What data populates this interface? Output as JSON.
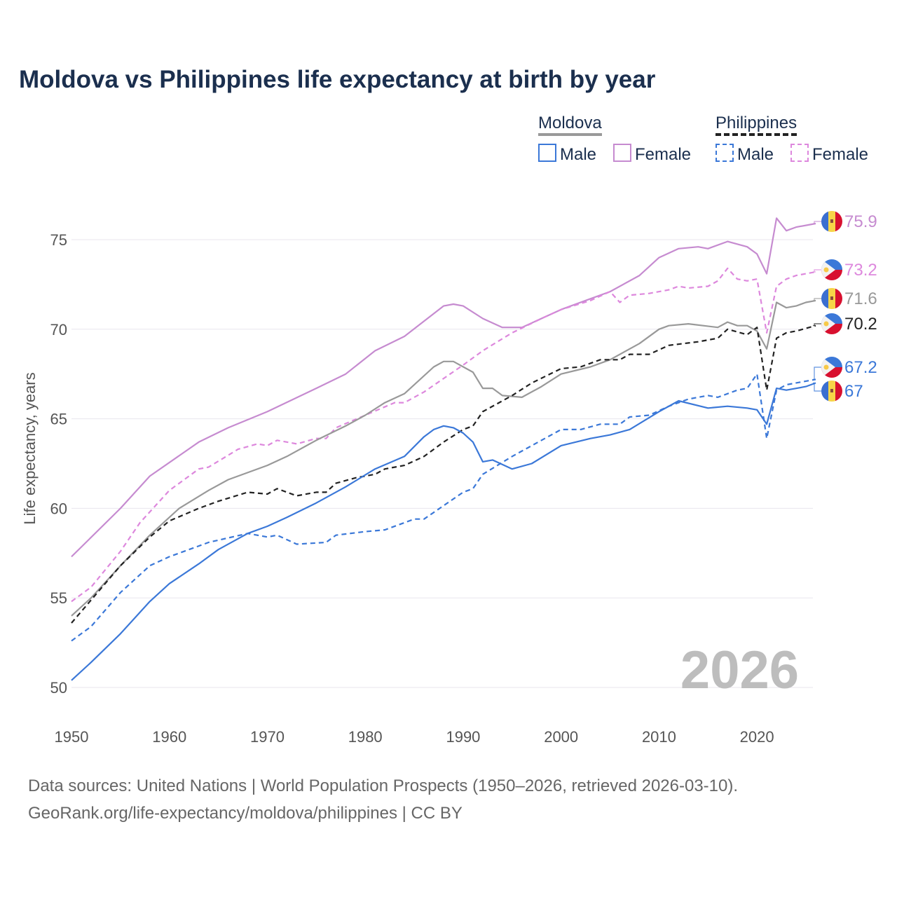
{
  "title": "Moldova vs Philippines life expectancy at birth by year",
  "legend": {
    "moldova": {
      "label": "Moldova",
      "male": "Male",
      "female": "Female"
    },
    "philippines": {
      "label": "Philippines",
      "male": "Male",
      "female": "Female"
    }
  },
  "watermark_year": "2026",
  "source_line1": "Data sources: United Nations | World Population Prospects (1950–2026, retrieved 2026-03-10).",
  "source_line2": "GeoRank.org/life-expectancy/moldova/philippines | CC BY",
  "chart_data": {
    "type": "line",
    "title": "Moldova vs Philippines life expectancy at birth by year",
    "xlabel": "",
    "ylabel": "Life expectancy, years",
    "xlim": [
      1950,
      2026
    ],
    "ylim": [
      50,
      76.5
    ],
    "xticks": [
      1950,
      1960,
      1970,
      1980,
      1990,
      2000,
      2010,
      2020
    ],
    "yticks": [
      50,
      55,
      60,
      65,
      70,
      75
    ],
    "grid": true,
    "legend_position": "top-right",
    "series": [
      {
        "name": "Moldova Female",
        "country": "moldova",
        "color": "#c68bd0",
        "dash": false,
        "end_label": "75.9",
        "points": [
          [
            1950,
            57.3
          ],
          [
            1955,
            60.0
          ],
          [
            1958,
            61.8
          ],
          [
            1963,
            63.7
          ],
          [
            1966,
            64.5
          ],
          [
            1970,
            65.4
          ],
          [
            1975,
            66.7
          ],
          [
            1978,
            67.5
          ],
          [
            1981,
            68.8
          ],
          [
            1984,
            69.6
          ],
          [
            1988,
            71.3
          ],
          [
            1989,
            71.4
          ],
          [
            1990,
            71.3
          ],
          [
            1992,
            70.6
          ],
          [
            1994,
            70.1
          ],
          [
            1996,
            70.1
          ],
          [
            2000,
            71.1
          ],
          [
            2003,
            71.7
          ],
          [
            2005,
            72.1
          ],
          [
            2008,
            73.0
          ],
          [
            2010,
            74.0
          ],
          [
            2012,
            74.5
          ],
          [
            2014,
            74.6
          ],
          [
            2015,
            74.5
          ],
          [
            2017,
            74.9
          ],
          [
            2019,
            74.6
          ],
          [
            2020,
            74.2
          ],
          [
            2021,
            73.1
          ],
          [
            2022,
            76.2
          ],
          [
            2023,
            75.5
          ],
          [
            2024,
            75.7
          ],
          [
            2026,
            75.9
          ]
        ]
      },
      {
        "name": "Philippines Female",
        "country": "philippines",
        "color": "#dd88dd",
        "dash": true,
        "end_label": "73.2",
        "points": [
          [
            1950,
            54.8
          ],
          [
            1952,
            55.6
          ],
          [
            1955,
            57.6
          ],
          [
            1957,
            59.2
          ],
          [
            1960,
            61.0
          ],
          [
            1963,
            62.2
          ],
          [
            1964,
            62.3
          ],
          [
            1967,
            63.3
          ],
          [
            1969,
            63.6
          ],
          [
            1970,
            63.5
          ],
          [
            1971,
            63.8
          ],
          [
            1973,
            63.6
          ],
          [
            1975,
            63.9
          ],
          [
            1976,
            63.9
          ],
          [
            1977,
            64.5
          ],
          [
            1980,
            65.2
          ],
          [
            1983,
            65.9
          ],
          [
            1984,
            65.9
          ],
          [
            1986,
            66.5
          ],
          [
            1990,
            68.0
          ],
          [
            1992,
            68.8
          ],
          [
            1995,
            69.8
          ],
          [
            1998,
            70.6
          ],
          [
            2000,
            71.1
          ],
          [
            2003,
            71.6
          ],
          [
            2005,
            72.1
          ],
          [
            2006,
            71.5
          ],
          [
            2007,
            71.9
          ],
          [
            2009,
            72.0
          ],
          [
            2011,
            72.2
          ],
          [
            2012,
            72.4
          ],
          [
            2013,
            72.3
          ],
          [
            2015,
            72.4
          ],
          [
            2016,
            72.7
          ],
          [
            2017,
            73.4
          ],
          [
            2018,
            72.8
          ],
          [
            2019,
            72.7
          ],
          [
            2020,
            72.8
          ],
          [
            2021,
            69.8
          ],
          [
            2022,
            72.4
          ],
          [
            2023,
            72.8
          ],
          [
            2024,
            73.0
          ],
          [
            2026,
            73.2
          ]
        ]
      },
      {
        "name": "Moldova",
        "country": "moldova",
        "color": "#999999",
        "dash": false,
        "end_label": "71.6",
        "points": [
          [
            1950,
            54.0
          ],
          [
            1952,
            55.0
          ],
          [
            1955,
            56.8
          ],
          [
            1958,
            58.5
          ],
          [
            1961,
            60.0
          ],
          [
            1964,
            61.0
          ],
          [
            1966,
            61.6
          ],
          [
            1970,
            62.4
          ],
          [
            1972,
            62.9
          ],
          [
            1975,
            63.8
          ],
          [
            1978,
            64.6
          ],
          [
            1980,
            65.2
          ],
          [
            1982,
            65.9
          ],
          [
            1984,
            66.4
          ],
          [
            1987,
            67.9
          ],
          [
            1988,
            68.2
          ],
          [
            1989,
            68.2
          ],
          [
            1991,
            67.6
          ],
          [
            1992,
            66.7
          ],
          [
            1993,
            66.7
          ],
          [
            1994,
            66.3
          ],
          [
            1996,
            66.2
          ],
          [
            1998,
            66.8
          ],
          [
            2000,
            67.5
          ],
          [
            2003,
            67.9
          ],
          [
            2005,
            68.3
          ],
          [
            2008,
            69.2
          ],
          [
            2010,
            70.0
          ],
          [
            2011,
            70.2
          ],
          [
            2013,
            70.3
          ],
          [
            2016,
            70.1
          ],
          [
            2017,
            70.4
          ],
          [
            2018,
            70.2
          ],
          [
            2019,
            70.2
          ],
          [
            2020,
            69.9
          ],
          [
            2021,
            68.9
          ],
          [
            2022,
            71.5
          ],
          [
            2023,
            71.2
          ],
          [
            2024,
            71.3
          ],
          [
            2025,
            71.5
          ],
          [
            2026,
            71.6
          ]
        ]
      },
      {
        "name": "Philippines",
        "country": "philippines",
        "color": "#222222",
        "dash": true,
        "end_label": "70.2",
        "points": [
          [
            1950,
            53.6
          ],
          [
            1955,
            56.8
          ],
          [
            1958,
            58.4
          ],
          [
            1960,
            59.3
          ],
          [
            1963,
            60.0
          ],
          [
            1965,
            60.4
          ],
          [
            1968,
            60.9
          ],
          [
            1970,
            60.8
          ],
          [
            1971,
            61.1
          ],
          [
            1973,
            60.7
          ],
          [
            1975,
            60.9
          ],
          [
            1976,
            60.9
          ],
          [
            1977,
            61.4
          ],
          [
            1979,
            61.7
          ],
          [
            1981,
            61.9
          ],
          [
            1982,
            62.2
          ],
          [
            1984,
            62.4
          ],
          [
            1986,
            62.9
          ],
          [
            1988,
            63.7
          ],
          [
            1990,
            64.4
          ],
          [
            1991,
            64.6
          ],
          [
            1992,
            65.4
          ],
          [
            1995,
            66.3
          ],
          [
            1997,
            67.0
          ],
          [
            2000,
            67.8
          ],
          [
            2002,
            67.9
          ],
          [
            2004,
            68.3
          ],
          [
            2006,
            68.3
          ],
          [
            2007,
            68.6
          ],
          [
            2009,
            68.6
          ],
          [
            2011,
            69.1
          ],
          [
            2014,
            69.3
          ],
          [
            2016,
            69.5
          ],
          [
            2017,
            70.0
          ],
          [
            2019,
            69.7
          ],
          [
            2020,
            70.1
          ],
          [
            2021,
            66.6
          ],
          [
            2022,
            69.5
          ],
          [
            2023,
            69.8
          ],
          [
            2024,
            69.9
          ],
          [
            2026,
            70.2
          ]
        ]
      },
      {
        "name": "Philippines Male",
        "country": "philippines",
        "color": "#3b78d8",
        "dash": true,
        "end_label": "67.2",
        "points": [
          [
            1950,
            52.6
          ],
          [
            1952,
            53.4
          ],
          [
            1955,
            55.3
          ],
          [
            1958,
            56.8
          ],
          [
            1960,
            57.3
          ],
          [
            1963,
            57.9
          ],
          [
            1964,
            58.1
          ],
          [
            1968,
            58.6
          ],
          [
            1970,
            58.4
          ],
          [
            1971,
            58.5
          ],
          [
            1973,
            58.0
          ],
          [
            1976,
            58.1
          ],
          [
            1977,
            58.5
          ],
          [
            1980,
            58.7
          ],
          [
            1982,
            58.8
          ],
          [
            1985,
            59.4
          ],
          [
            1986,
            59.4
          ],
          [
            1990,
            60.9
          ],
          [
            1991,
            61.1
          ],
          [
            1992,
            61.9
          ],
          [
            1995,
            62.9
          ],
          [
            2000,
            64.4
          ],
          [
            2002,
            64.4
          ],
          [
            2004,
            64.7
          ],
          [
            2006,
            64.7
          ],
          [
            2007,
            65.1
          ],
          [
            2009,
            65.2
          ],
          [
            2011,
            65.7
          ],
          [
            2013,
            66.1
          ],
          [
            2015,
            66.3
          ],
          [
            2016,
            66.2
          ],
          [
            2018,
            66.6
          ],
          [
            2019,
            66.7
          ],
          [
            2020,
            67.5
          ],
          [
            2021,
            63.9
          ],
          [
            2022,
            66.6
          ],
          [
            2023,
            66.9
          ],
          [
            2026,
            67.2
          ]
        ]
      },
      {
        "name": "Moldova Male",
        "country": "moldova",
        "color": "#3b78d8",
        "dash": false,
        "end_label": "67",
        "points": [
          [
            1950,
            50.4
          ],
          [
            1952,
            51.4
          ],
          [
            1955,
            53.0
          ],
          [
            1958,
            54.8
          ],
          [
            1960,
            55.8
          ],
          [
            1963,
            56.9
          ],
          [
            1965,
            57.7
          ],
          [
            1968,
            58.6
          ],
          [
            1970,
            59.0
          ],
          [
            1972,
            59.5
          ],
          [
            1975,
            60.3
          ],
          [
            1978,
            61.2
          ],
          [
            1981,
            62.2
          ],
          [
            1984,
            62.9
          ],
          [
            1986,
            64.0
          ],
          [
            1987,
            64.4
          ],
          [
            1988,
            64.6
          ],
          [
            1989,
            64.5
          ],
          [
            1990,
            64.2
          ],
          [
            1991,
            63.7
          ],
          [
            1992,
            62.6
          ],
          [
            1993,
            62.7
          ],
          [
            1995,
            62.2
          ],
          [
            1997,
            62.5
          ],
          [
            2000,
            63.5
          ],
          [
            2003,
            63.9
          ],
          [
            2005,
            64.1
          ],
          [
            2007,
            64.4
          ],
          [
            2010,
            65.4
          ],
          [
            2012,
            66.0
          ],
          [
            2015,
            65.6
          ],
          [
            2017,
            65.7
          ],
          [
            2019,
            65.6
          ],
          [
            2020,
            65.5
          ],
          [
            2021,
            64.7
          ],
          [
            2022,
            66.7
          ],
          [
            2023,
            66.6
          ],
          [
            2025,
            66.8
          ],
          [
            2026,
            67.0
          ]
        ]
      }
    ]
  }
}
